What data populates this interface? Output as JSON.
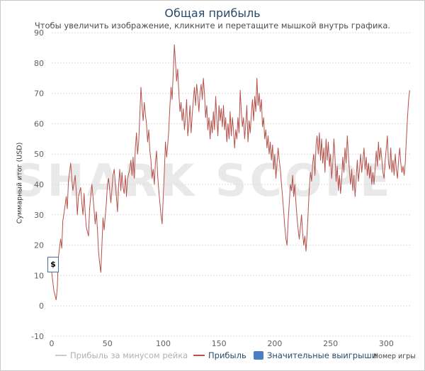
{
  "chart_data": {
    "type": "line",
    "title": "Общая прибыль",
    "subtitle": "Чтобы увеличить изображение, кликните и перетащите мышкой внутрь графика.",
    "ylabel": "Суммарный итог (USD)",
    "xlabel": "Номер игры",
    "xlim": [
      0,
      322
    ],
    "ylim": [
      -10,
      90
    ],
    "xticks": [
      0,
      50,
      100,
      150,
      200,
      250,
      300
    ],
    "yticks": [
      -10,
      0,
      10,
      20,
      30,
      40,
      50,
      60,
      70,
      80,
      90
    ],
    "grid": true,
    "legend_position": "bottom",
    "series": [
      {
        "name": "Прибыль",
        "color": "#b5504a",
        "points": [
          [
            0,
            11
          ],
          [
            2,
            5
          ],
          [
            4,
            2
          ],
          [
            5,
            6
          ],
          [
            6,
            16
          ],
          [
            8,
            22
          ],
          [
            9,
            19
          ],
          [
            10,
            28
          ],
          [
            12,
            33
          ],
          [
            13,
            36
          ],
          [
            14,
            32
          ],
          [
            15,
            41
          ],
          [
            17,
            47
          ],
          [
            18,
            42
          ],
          [
            19,
            38
          ],
          [
            21,
            43
          ],
          [
            22,
            38
          ],
          [
            23,
            30
          ],
          [
            24,
            36
          ],
          [
            26,
            39
          ],
          [
            27,
            34
          ],
          [
            28,
            30
          ],
          [
            29,
            37
          ],
          [
            30,
            31
          ],
          [
            31,
            26
          ],
          [
            33,
            23
          ],
          [
            34,
            32
          ],
          [
            36,
            40
          ],
          [
            37,
            36
          ],
          [
            39,
            27
          ],
          [
            40,
            31
          ],
          [
            41,
            25
          ],
          [
            42,
            18
          ],
          [
            43,
            14
          ],
          [
            44,
            11
          ],
          [
            45,
            20
          ],
          [
            46,
            29
          ],
          [
            47,
            25
          ],
          [
            49,
            34
          ],
          [
            50,
            40
          ],
          [
            51,
            42
          ],
          [
            53,
            34
          ],
          [
            55,
            43
          ],
          [
            56,
            45
          ],
          [
            58,
            36
          ],
          [
            59,
            31
          ],
          [
            60,
            40
          ],
          [
            61,
            45
          ],
          [
            62,
            38
          ],
          [
            63,
            44
          ],
          [
            64,
            39
          ],
          [
            65,
            37
          ],
          [
            66,
            43
          ],
          [
            67,
            36
          ],
          [
            68,
            42
          ],
          [
            70,
            45
          ],
          [
            71,
            48
          ],
          [
            72,
            43
          ],
          [
            73,
            49
          ],
          [
            74,
            42
          ],
          [
            75,
            52
          ],
          [
            76,
            57
          ],
          [
            77,
            50
          ],
          [
            78,
            54
          ],
          [
            79,
            63
          ],
          [
            80,
            72
          ],
          [
            81,
            66
          ],
          [
            82,
            61
          ],
          [
            83,
            67
          ],
          [
            84,
            63
          ],
          [
            85,
            60
          ],
          [
            86,
            54
          ],
          [
            87,
            58
          ],
          [
            88,
            51
          ],
          [
            89,
            48
          ],
          [
            90,
            42
          ],
          [
            91,
            45
          ],
          [
            92,
            40
          ],
          [
            93,
            47
          ],
          [
            94,
            51
          ],
          [
            95,
            43
          ],
          [
            96,
            38
          ],
          [
            97,
            34
          ],
          [
            98,
            30
          ],
          [
            99,
            27
          ],
          [
            100,
            36
          ],
          [
            101,
            44
          ],
          [
            102,
            54
          ],
          [
            103,
            49
          ],
          [
            104,
            53
          ],
          [
            105,
            58
          ],
          [
            106,
            66
          ],
          [
            107,
            72
          ],
          [
            108,
            68
          ],
          [
            109,
            77
          ],
          [
            110,
            86
          ],
          [
            111,
            80
          ],
          [
            112,
            74
          ],
          [
            113,
            78
          ],
          [
            114,
            70
          ],
          [
            115,
            64
          ],
          [
            116,
            67
          ],
          [
            117,
            61
          ],
          [
            118,
            65
          ],
          [
            119,
            58
          ],
          [
            120,
            62
          ],
          [
            121,
            68
          ],
          [
            122,
            56
          ],
          [
            123,
            60
          ],
          [
            124,
            66
          ],
          [
            125,
            57
          ],
          [
            126,
            63
          ],
          [
            127,
            68
          ],
          [
            128,
            72
          ],
          [
            129,
            66
          ],
          [
            130,
            73
          ],
          [
            131,
            69
          ],
          [
            132,
            64
          ],
          [
            133,
            70
          ],
          [
            134,
            73
          ],
          [
            135,
            68
          ],
          [
            136,
            75
          ],
          [
            137,
            70
          ],
          [
            138,
            62
          ],
          [
            139,
            66
          ],
          [
            140,
            58
          ],
          [
            141,
            62
          ],
          [
            142,
            55
          ],
          [
            143,
            61
          ],
          [
            144,
            57
          ],
          [
            145,
            64
          ],
          [
            146,
            58
          ],
          [
            147,
            69
          ],
          [
            148,
            62
          ],
          [
            149,
            56
          ],
          [
            150,
            66
          ],
          [
            151,
            61
          ],
          [
            152,
            65
          ],
          [
            153,
            59
          ],
          [
            154,
            66
          ],
          [
            155,
            58
          ],
          [
            156,
            62
          ],
          [
            157,
            54
          ],
          [
            158,
            60
          ],
          [
            159,
            55
          ],
          [
            160,
            64
          ],
          [
            161,
            56
          ],
          [
            162,
            62
          ],
          [
            163,
            58
          ],
          [
            164,
            52
          ],
          [
            165,
            58
          ],
          [
            166,
            55
          ],
          [
            167,
            62
          ],
          [
            168,
            57
          ],
          [
            169,
            71
          ],
          [
            170,
            64
          ],
          [
            171,
            59
          ],
          [
            172,
            62
          ],
          [
            173,
            55
          ],
          [
            174,
            60
          ],
          [
            175,
            66
          ],
          [
            176,
            54
          ],
          [
            177,
            61
          ],
          [
            178,
            57
          ],
          [
            179,
            63
          ],
          [
            180,
            68
          ],
          [
            181,
            61
          ],
          [
            182,
            69
          ],
          [
            183,
            64
          ],
          [
            184,
            75
          ],
          [
            185,
            66
          ],
          [
            186,
            70
          ],
          [
            187,
            64
          ],
          [
            188,
            68
          ],
          [
            189,
            59
          ],
          [
            190,
            62
          ],
          [
            191,
            55
          ],
          [
            192,
            58
          ],
          [
            193,
            52
          ],
          [
            194,
            56
          ],
          [
            195,
            50
          ],
          [
            196,
            54
          ],
          [
            197,
            48
          ],
          [
            198,
            53
          ],
          [
            199,
            45
          ],
          [
            200,
            50
          ],
          [
            201,
            42
          ],
          [
            202,
            47
          ],
          [
            203,
            52
          ],
          [
            204,
            48
          ],
          [
            205,
            45
          ],
          [
            206,
            40
          ],
          [
            207,
            36
          ],
          [
            208,
            31
          ],
          [
            209,
            26
          ],
          [
            210,
            22
          ],
          [
            211,
            20
          ],
          [
            212,
            28
          ],
          [
            213,
            34
          ],
          [
            214,
            40
          ],
          [
            215,
            38
          ],
          [
            216,
            43
          ],
          [
            217,
            36
          ],
          [
            218,
            40
          ],
          [
            219,
            34
          ],
          [
            220,
            29
          ],
          [
            221,
            25
          ],
          [
            222,
            22
          ],
          [
            223,
            26
          ],
          [
            224,
            30
          ],
          [
            225,
            24
          ],
          [
            226,
            20
          ],
          [
            227,
            23
          ],
          [
            228,
            18
          ],
          [
            229,
            24
          ],
          [
            230,
            31
          ],
          [
            231,
            39
          ],
          [
            232,
            44
          ],
          [
            233,
            41
          ],
          [
            234,
            47
          ],
          [
            235,
            50
          ],
          [
            236,
            43
          ],
          [
            237,
            53
          ],
          [
            238,
            56
          ],
          [
            239,
            50
          ],
          [
            240,
            57
          ],
          [
            241,
            48
          ],
          [
            242,
            55
          ],
          [
            243,
            47
          ],
          [
            244,
            52
          ],
          [
            245,
            44
          ],
          [
            246,
            55
          ],
          [
            247,
            48
          ],
          [
            248,
            54
          ],
          [
            249,
            46
          ],
          [
            250,
            50
          ],
          [
            251,
            42
          ],
          [
            252,
            47
          ],
          [
            253,
            55
          ],
          [
            254,
            49
          ],
          [
            255,
            41
          ],
          [
            256,
            46
          ],
          [
            257,
            38
          ],
          [
            258,
            43
          ],
          [
            259,
            37
          ],
          [
            260,
            42
          ],
          [
            261,
            49
          ],
          [
            262,
            44
          ],
          [
            263,
            52
          ],
          [
            264,
            47
          ],
          [
            265,
            56
          ],
          [
            266,
            50
          ],
          [
            267,
            44
          ],
          [
            268,
            40
          ],
          [
            269,
            45
          ],
          [
            270,
            38
          ],
          [
            271,
            43
          ],
          [
            272,
            36
          ],
          [
            273,
            42
          ],
          [
            274,
            48
          ],
          [
            275,
            41
          ],
          [
            276,
            45
          ],
          [
            277,
            50
          ],
          [
            278,
            44
          ],
          [
            279,
            48
          ],
          [
            280,
            52
          ],
          [
            281,
            45
          ],
          [
            282,
            49
          ],
          [
            283,
            43
          ],
          [
            284,
            47
          ],
          [
            285,
            42
          ],
          [
            286,
            46
          ],
          [
            287,
            40
          ],
          [
            288,
            44
          ],
          [
            289,
            40
          ],
          [
            290,
            45
          ],
          [
            291,
            51
          ],
          [
            292,
            46
          ],
          [
            293,
            54
          ],
          [
            294,
            48
          ],
          [
            295,
            52
          ],
          [
            296,
            48
          ],
          [
            297,
            44
          ],
          [
            298,
            42
          ],
          [
            299,
            48
          ],
          [
            300,
            52
          ],
          [
            301,
            56
          ],
          [
            302,
            47
          ],
          [
            303,
            45
          ],
          [
            304,
            52
          ],
          [
            305,
            44
          ],
          [
            306,
            48
          ],
          [
            307,
            43
          ],
          [
            308,
            50
          ],
          [
            309,
            45
          ],
          [
            310,
            42
          ],
          [
            311,
            48
          ],
          [
            312,
            52
          ],
          [
            313,
            47
          ],
          [
            314,
            44
          ],
          [
            315,
            46
          ],
          [
            316,
            43
          ],
          [
            317,
            47
          ],
          [
            318,
            55
          ],
          [
            319,
            62
          ],
          [
            320,
            68
          ],
          [
            321,
            71
          ]
        ]
      }
    ]
  },
  "legend": {
    "items": [
      {
        "label": "Прибыль за минусом рейка",
        "color": "#cccccc"
      },
      {
        "label": "Прибыль",
        "color": "#b5504a"
      },
      {
        "label": "Значительные выигрыши",
        "color": "#4a7fc8"
      }
    ]
  },
  "flag": {
    "label": "$",
    "x": 0,
    "y": 12
  },
  "watermark": {
    "text": "SHARK SCOPE"
  },
  "colors": {
    "title": "#274b6d",
    "grid": "#dddddd",
    "line": "#b5504a"
  }
}
